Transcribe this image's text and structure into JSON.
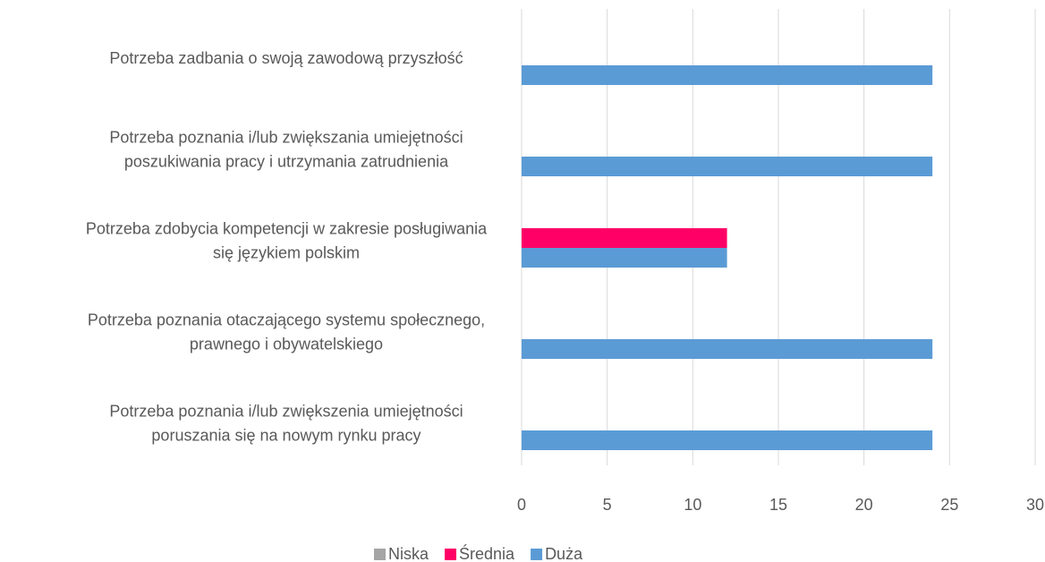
{
  "chart_data": {
    "type": "hbar",
    "categories": [
      [
        "Potrzeba zadbania o swoją zawodową przyszłość"
      ],
      [
        "Potrzeba poznania i/lub zwiększania umiejętności",
        "poszukiwania pracy i utrzymania zatrudnienia"
      ],
      [
        "Potrzeba zdobycia kompetencji w zakresie posługiwania",
        "się językiem polskim"
      ],
      [
        "Potrzeba poznania otaczającego systemu społecznego,",
        "prawnego i obywatelskiego"
      ],
      [
        "Potrzeba poznania i/lub zwiększenia umiejętności",
        "poruszania się na nowym rynku pracy"
      ]
    ],
    "series": [
      {
        "name": "Niska",
        "color": "#a5a5a5",
        "values": [
          0,
          0,
          0,
          0,
          0
        ]
      },
      {
        "name": "Średnia",
        "color": "#ff0066",
        "values": [
          0,
          0,
          12,
          0,
          0
        ]
      },
      {
        "name": "Duża",
        "color": "#5b9bd5",
        "values": [
          24,
          24,
          12,
          24,
          24
        ]
      }
    ],
    "xlim": [
      0,
      30
    ],
    "xticks": [
      0,
      5,
      10,
      15,
      20,
      25,
      30
    ],
    "grid": true,
    "legend": "bottom"
  }
}
